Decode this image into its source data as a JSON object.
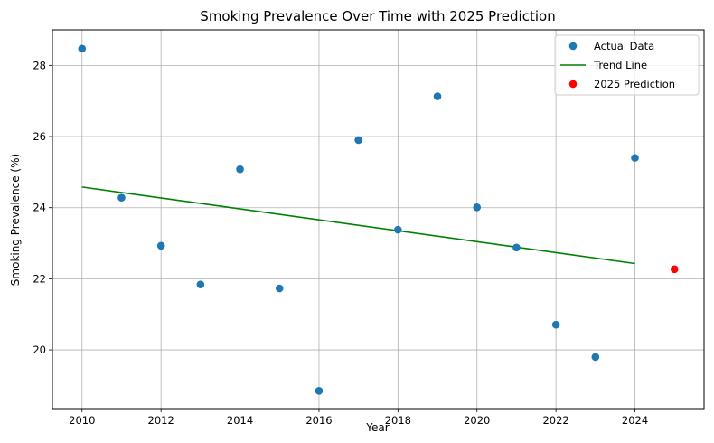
{
  "chart_data": {
    "type": "scatter",
    "title": "Smoking Prevalence Over Time with 2025 Prediction",
    "xlabel": "Year",
    "ylabel": "Smoking Prevalence (%)",
    "xlim": [
      2009.25,
      2025.75
    ],
    "ylim": [
      18.35,
      29.0
    ],
    "xticks": [
      2010,
      2012,
      2014,
      2016,
      2018,
      2020,
      2022,
      2024
    ],
    "yticks": [
      20,
      22,
      24,
      26,
      28
    ],
    "grid": true,
    "legend_position": "top-right",
    "series": [
      {
        "name": "Actual Data",
        "type": "scatter",
        "color": "#1f77b4",
        "x": [
          2010,
          2011,
          2012,
          2013,
          2014,
          2015,
          2016,
          2017,
          2018,
          2019,
          2020,
          2021,
          2022,
          2023,
          2024
        ],
        "y": [
          28.47,
          24.28,
          22.93,
          21.84,
          25.08,
          21.73,
          18.85,
          25.9,
          23.38,
          27.13,
          24.01,
          22.88,
          20.71,
          19.8,
          25.4
        ]
      },
      {
        "name": "Trend Line",
        "type": "line",
        "color": "#008000",
        "x": [
          2010,
          2024
        ],
        "y": [
          24.58,
          22.43
        ]
      },
      {
        "name": "2025 Prediction",
        "type": "scatter",
        "color": "#ff0000",
        "x": [
          2025
        ],
        "y": [
          22.27
        ]
      }
    ]
  }
}
